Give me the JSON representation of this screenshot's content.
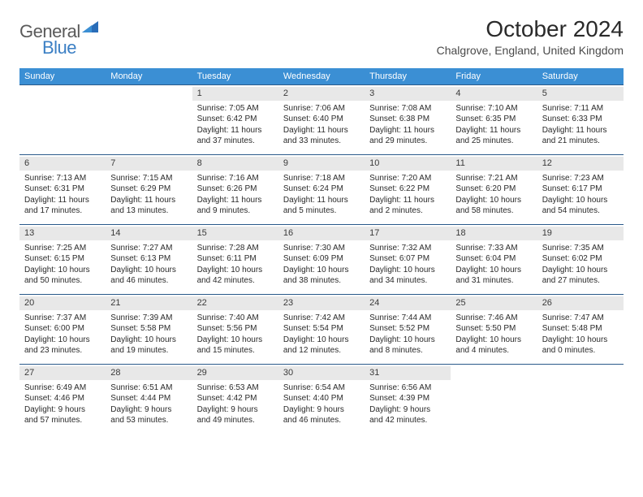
{
  "logo": {
    "part1": "General",
    "part2": "Blue"
  },
  "title": "October 2024",
  "location": "Chalgrove, England, United Kingdom",
  "colors": {
    "header_bg": "#3b8fd4",
    "header_text": "#ffffff",
    "divider": "#2a5a8a",
    "daynum_bg": "#e8e8e8",
    "text": "#2a2a2a",
    "logo_gray": "#5a5a5a",
    "logo_blue": "#3b7fc4"
  },
  "day_headers": [
    "Sunday",
    "Monday",
    "Tuesday",
    "Wednesday",
    "Thursday",
    "Friday",
    "Saturday"
  ],
  "weeks": [
    [
      null,
      null,
      {
        "n": "1",
        "sr": "Sunrise: 7:05 AM",
        "ss": "Sunset: 6:42 PM",
        "dl1": "Daylight: 11 hours",
        "dl2": "and 37 minutes."
      },
      {
        "n": "2",
        "sr": "Sunrise: 7:06 AM",
        "ss": "Sunset: 6:40 PM",
        "dl1": "Daylight: 11 hours",
        "dl2": "and 33 minutes."
      },
      {
        "n": "3",
        "sr": "Sunrise: 7:08 AM",
        "ss": "Sunset: 6:38 PM",
        "dl1": "Daylight: 11 hours",
        "dl2": "and 29 minutes."
      },
      {
        "n": "4",
        "sr": "Sunrise: 7:10 AM",
        "ss": "Sunset: 6:35 PM",
        "dl1": "Daylight: 11 hours",
        "dl2": "and 25 minutes."
      },
      {
        "n": "5",
        "sr": "Sunrise: 7:11 AM",
        "ss": "Sunset: 6:33 PM",
        "dl1": "Daylight: 11 hours",
        "dl2": "and 21 minutes."
      }
    ],
    [
      {
        "n": "6",
        "sr": "Sunrise: 7:13 AM",
        "ss": "Sunset: 6:31 PM",
        "dl1": "Daylight: 11 hours",
        "dl2": "and 17 minutes."
      },
      {
        "n": "7",
        "sr": "Sunrise: 7:15 AM",
        "ss": "Sunset: 6:29 PM",
        "dl1": "Daylight: 11 hours",
        "dl2": "and 13 minutes."
      },
      {
        "n": "8",
        "sr": "Sunrise: 7:16 AM",
        "ss": "Sunset: 6:26 PM",
        "dl1": "Daylight: 11 hours",
        "dl2": "and 9 minutes."
      },
      {
        "n": "9",
        "sr": "Sunrise: 7:18 AM",
        "ss": "Sunset: 6:24 PM",
        "dl1": "Daylight: 11 hours",
        "dl2": "and 5 minutes."
      },
      {
        "n": "10",
        "sr": "Sunrise: 7:20 AM",
        "ss": "Sunset: 6:22 PM",
        "dl1": "Daylight: 11 hours",
        "dl2": "and 2 minutes."
      },
      {
        "n": "11",
        "sr": "Sunrise: 7:21 AM",
        "ss": "Sunset: 6:20 PM",
        "dl1": "Daylight: 10 hours",
        "dl2": "and 58 minutes."
      },
      {
        "n": "12",
        "sr": "Sunrise: 7:23 AM",
        "ss": "Sunset: 6:17 PM",
        "dl1": "Daylight: 10 hours",
        "dl2": "and 54 minutes."
      }
    ],
    [
      {
        "n": "13",
        "sr": "Sunrise: 7:25 AM",
        "ss": "Sunset: 6:15 PM",
        "dl1": "Daylight: 10 hours",
        "dl2": "and 50 minutes."
      },
      {
        "n": "14",
        "sr": "Sunrise: 7:27 AM",
        "ss": "Sunset: 6:13 PM",
        "dl1": "Daylight: 10 hours",
        "dl2": "and 46 minutes."
      },
      {
        "n": "15",
        "sr": "Sunrise: 7:28 AM",
        "ss": "Sunset: 6:11 PM",
        "dl1": "Daylight: 10 hours",
        "dl2": "and 42 minutes."
      },
      {
        "n": "16",
        "sr": "Sunrise: 7:30 AM",
        "ss": "Sunset: 6:09 PM",
        "dl1": "Daylight: 10 hours",
        "dl2": "and 38 minutes."
      },
      {
        "n": "17",
        "sr": "Sunrise: 7:32 AM",
        "ss": "Sunset: 6:07 PM",
        "dl1": "Daylight: 10 hours",
        "dl2": "and 34 minutes."
      },
      {
        "n": "18",
        "sr": "Sunrise: 7:33 AM",
        "ss": "Sunset: 6:04 PM",
        "dl1": "Daylight: 10 hours",
        "dl2": "and 31 minutes."
      },
      {
        "n": "19",
        "sr": "Sunrise: 7:35 AM",
        "ss": "Sunset: 6:02 PM",
        "dl1": "Daylight: 10 hours",
        "dl2": "and 27 minutes."
      }
    ],
    [
      {
        "n": "20",
        "sr": "Sunrise: 7:37 AM",
        "ss": "Sunset: 6:00 PM",
        "dl1": "Daylight: 10 hours",
        "dl2": "and 23 minutes."
      },
      {
        "n": "21",
        "sr": "Sunrise: 7:39 AM",
        "ss": "Sunset: 5:58 PM",
        "dl1": "Daylight: 10 hours",
        "dl2": "and 19 minutes."
      },
      {
        "n": "22",
        "sr": "Sunrise: 7:40 AM",
        "ss": "Sunset: 5:56 PM",
        "dl1": "Daylight: 10 hours",
        "dl2": "and 15 minutes."
      },
      {
        "n": "23",
        "sr": "Sunrise: 7:42 AM",
        "ss": "Sunset: 5:54 PM",
        "dl1": "Daylight: 10 hours",
        "dl2": "and 12 minutes."
      },
      {
        "n": "24",
        "sr": "Sunrise: 7:44 AM",
        "ss": "Sunset: 5:52 PM",
        "dl1": "Daylight: 10 hours",
        "dl2": "and 8 minutes."
      },
      {
        "n": "25",
        "sr": "Sunrise: 7:46 AM",
        "ss": "Sunset: 5:50 PM",
        "dl1": "Daylight: 10 hours",
        "dl2": "and 4 minutes."
      },
      {
        "n": "26",
        "sr": "Sunrise: 7:47 AM",
        "ss": "Sunset: 5:48 PM",
        "dl1": "Daylight: 10 hours",
        "dl2": "and 0 minutes."
      }
    ],
    [
      {
        "n": "27",
        "sr": "Sunrise: 6:49 AM",
        "ss": "Sunset: 4:46 PM",
        "dl1": "Daylight: 9 hours",
        "dl2": "and 57 minutes."
      },
      {
        "n": "28",
        "sr": "Sunrise: 6:51 AM",
        "ss": "Sunset: 4:44 PM",
        "dl1": "Daylight: 9 hours",
        "dl2": "and 53 minutes."
      },
      {
        "n": "29",
        "sr": "Sunrise: 6:53 AM",
        "ss": "Sunset: 4:42 PM",
        "dl1": "Daylight: 9 hours",
        "dl2": "and 49 minutes."
      },
      {
        "n": "30",
        "sr": "Sunrise: 6:54 AM",
        "ss": "Sunset: 4:40 PM",
        "dl1": "Daylight: 9 hours",
        "dl2": "and 46 minutes."
      },
      {
        "n": "31",
        "sr": "Sunrise: 6:56 AM",
        "ss": "Sunset: 4:39 PM",
        "dl1": "Daylight: 9 hours",
        "dl2": "and 42 minutes."
      },
      null,
      null
    ]
  ]
}
